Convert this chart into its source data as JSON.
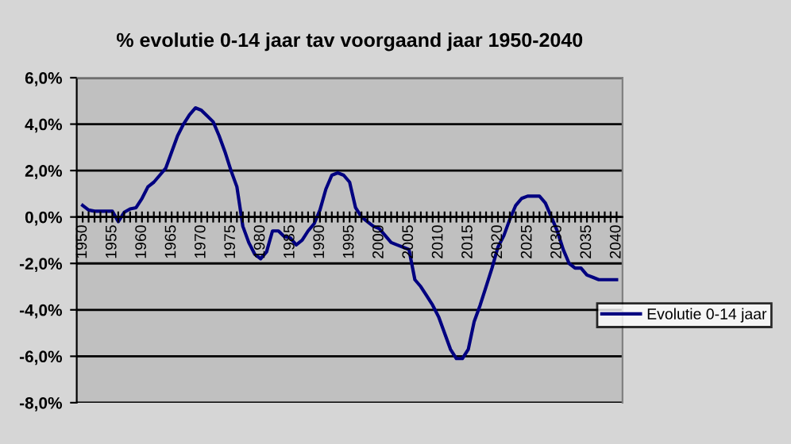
{
  "chart_data": {
    "type": "line",
    "title": "% evolutie 0-14 jaar tav voorgaand jaar 1950-2040",
    "categories": [
      "1950",
      null,
      null,
      null,
      null,
      "1955",
      null,
      null,
      null,
      null,
      "1960",
      null,
      null,
      null,
      null,
      "1965",
      null,
      null,
      null,
      null,
      "1970",
      null,
      null,
      null,
      null,
      "1975",
      null,
      null,
      null,
      null,
      "1980",
      null,
      null,
      null,
      null,
      "1985",
      null,
      null,
      null,
      null,
      "1990",
      null,
      null,
      null,
      null,
      "1995",
      null,
      null,
      null,
      null,
      "2000",
      null,
      null,
      null,
      null,
      "2005",
      null,
      null,
      null,
      null,
      "2010",
      null,
      null,
      null,
      null,
      "2015",
      null,
      null,
      null,
      null,
      "2020",
      null,
      null,
      null,
      null,
      "2025",
      null,
      null,
      null,
      null,
      "2030",
      null,
      null,
      null,
      null,
      "2035",
      null,
      null,
      null,
      null,
      "2040"
    ],
    "series": [
      {
        "name": "Evolutie 0-14 jaar",
        "color": "#000080",
        "values": [
          0.5,
          0.3,
          0.25,
          0.25,
          0.25,
          0.25,
          -0.2,
          0.2,
          0.35,
          0.4,
          0.8,
          1.3,
          1.5,
          1.8,
          2.1,
          2.8,
          3.5,
          4.0,
          4.4,
          4.7,
          4.6,
          4.35,
          4.1,
          3.5,
          2.8,
          2.0,
          1.3,
          -0.4,
          -1.1,
          -1.6,
          -1.8,
          -1.5,
          -0.6,
          -0.6,
          -0.85,
          -0.9,
          -1.2,
          -1.0,
          -0.6,
          -0.3,
          0.3,
          1.2,
          1.8,
          1.9,
          1.8,
          1.5,
          0.4,
          0.0,
          -0.2,
          -0.4,
          -0.5,
          -0.8,
          -1.1,
          -1.2,
          -1.3,
          -1.4,
          -2.7,
          -3.0,
          -3.4,
          -3.8,
          -4.3,
          -5.0,
          -5.7,
          -6.1,
          -6.1,
          -5.7,
          -4.5,
          -3.8,
          -3.0,
          -2.2,
          -1.3,
          -0.8,
          -0.1,
          0.5,
          0.8,
          0.9,
          0.9,
          0.9,
          0.6,
          0.0,
          -0.6,
          -1.4,
          -2.0,
          -2.2,
          -2.2,
          -2.5,
          -2.6,
          -2.7,
          -2.7,
          -2.7,
          -2.7
        ]
      }
    ],
    "ylim": [
      -8,
      6
    ],
    "yticks": [
      {
        "value": -8,
        "label": "-8,0%"
      },
      {
        "value": -6,
        "label": "-6,0%"
      },
      {
        "value": -4,
        "label": "-4,0%"
      },
      {
        "value": -2,
        "label": "-2,0%"
      },
      {
        "value": 0,
        "label": "0,0%"
      },
      {
        "value": 2,
        "label": "2,0%"
      },
      {
        "value": 4,
        "label": "4,0%"
      },
      {
        "value": 6,
        "label": "6,0%"
      }
    ],
    "grid": "y",
    "legend": "right",
    "marker": "none",
    "line_style": "solid"
  }
}
